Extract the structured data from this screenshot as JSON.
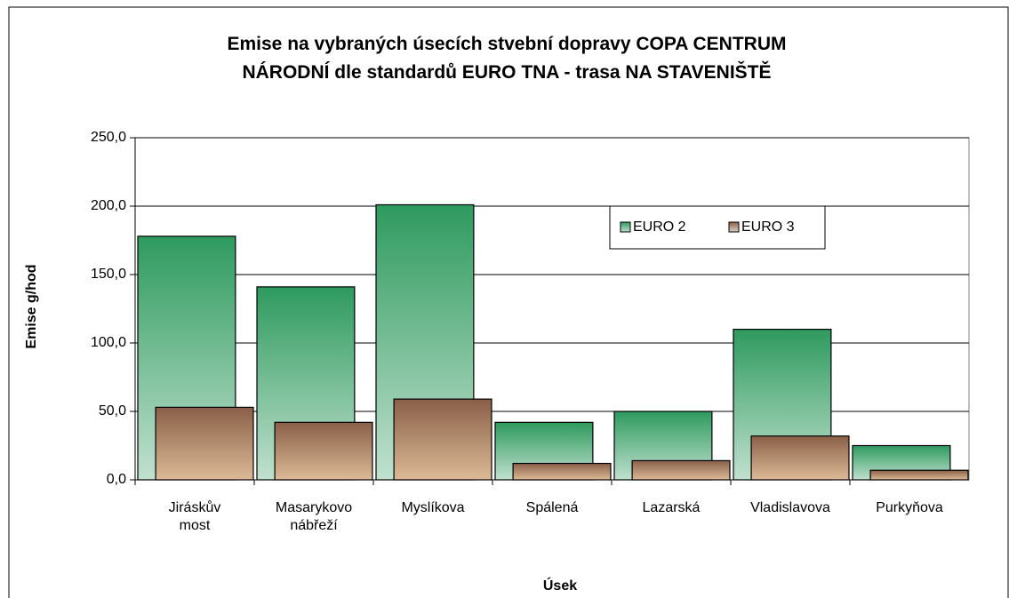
{
  "chart_data": {
    "type": "bar",
    "title": "Emise na vybraných úsecích stvební dopravy COPA CENTRUM\nNÁRODNÍ dle standardů EURO TNA - trasa NA STAVENIŠTĚ",
    "x_label": "Úsek",
    "y_label": "Emise g/hod",
    "categories": [
      "Jiráskův\nmost",
      "Masarykovo\nnábřeží",
      "Myslíkova",
      "Spálená",
      "Lazarská",
      "Vladislavova",
      "Purkyňova"
    ],
    "series": [
      {
        "name": "EURO 2",
        "color": "#2e9a5e",
        "values": [
          178,
          141,
          201,
          42,
          50,
          110,
          25
        ]
      },
      {
        "name": "EURO 3",
        "color": "#8a6048",
        "values": [
          53,
          42,
          59,
          12,
          14,
          32,
          7
        ]
      }
    ],
    "ylim": [
      0,
      250
    ],
    "yticks": [
      {
        "value": 0,
        "label": "0,0"
      },
      {
        "value": 50,
        "label": "50,0"
      },
      {
        "value": 100,
        "label": "100,0"
      },
      {
        "value": 150,
        "label": "150,0"
      },
      {
        "value": 200,
        "label": "200,0"
      },
      {
        "value": 250,
        "label": "250,0"
      }
    ],
    "grid": true,
    "legend": "upper right"
  }
}
